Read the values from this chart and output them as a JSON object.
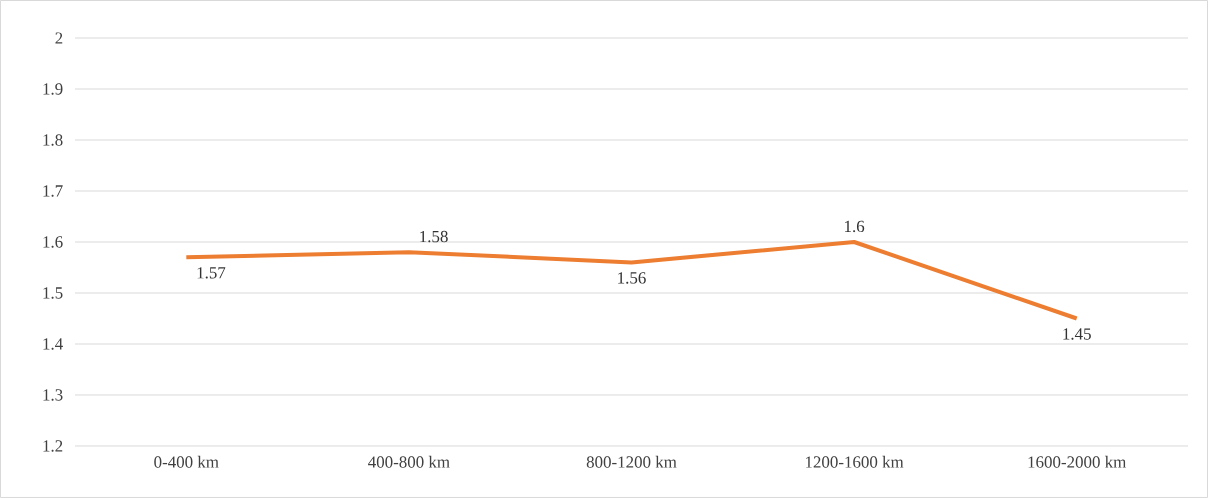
{
  "chart_data": {
    "type": "line",
    "categories": [
      "0-400 km",
      "400-800 km",
      "800-1200 km",
      "1200-1600 km",
      "1600-2000 km"
    ],
    "values": [
      1.57,
      1.58,
      1.56,
      1.6,
      1.45
    ],
    "color": "#ed7d31",
    "ylim": [
      1.2,
      2
    ],
    "yticks": [
      1.2,
      1.3,
      1.4,
      1.5,
      1.6,
      1.7,
      1.8,
      1.9,
      2
    ],
    "grid": "y",
    "data_labels": true,
    "marker": "none",
    "line_style": "solid"
  }
}
